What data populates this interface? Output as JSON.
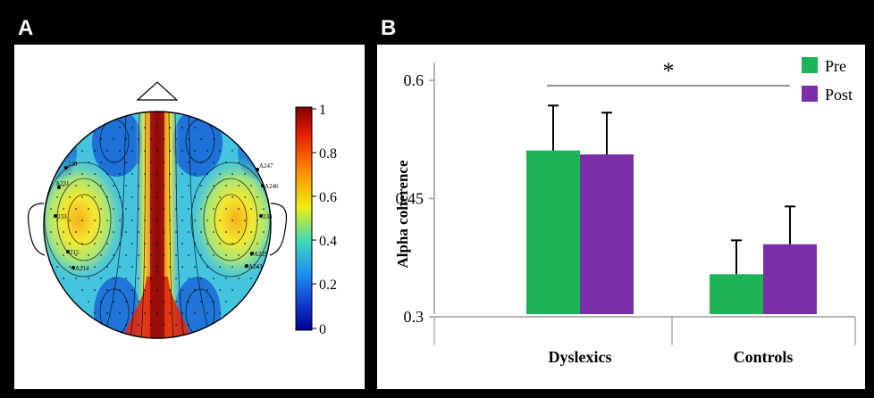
{
  "panel_a": {
    "letter": "A",
    "colorbar_ticks": [
      "1",
      "0.8",
      "0.6",
      "0.4",
      "0.2",
      "0"
    ],
    "electrode_labels": {
      "left": [
        "230",
        "A231",
        "233",
        "215",
        "A214"
      ],
      "right": [
        "A247",
        "A246",
        "234",
        "A225",
        "A243"
      ]
    }
  },
  "panel_b": {
    "letter": "B",
    "significance_marker": "*"
  },
  "colors": {
    "pre": "#1db455",
    "post": "#7a2fa6",
    "axis": "#9a9a9a"
  },
  "chart_data": {
    "type": "bar",
    "categories": [
      "Dyslexics",
      "Controls"
    ],
    "series": [
      {
        "name": "Pre",
        "values": [
          0.511,
          0.354
        ],
        "error": [
          0.057,
          0.043
        ]
      },
      {
        "name": "Post",
        "values": [
          0.506,
          0.392
        ],
        "error": [
          0.053,
          0.048
        ]
      }
    ],
    "ylabel": "Alpha coherence",
    "ylim": [
      0.3,
      0.6
    ],
    "yticks": [
      "0.6",
      "0.45",
      "0.3"
    ],
    "legend": "top-right",
    "grid": false
  }
}
